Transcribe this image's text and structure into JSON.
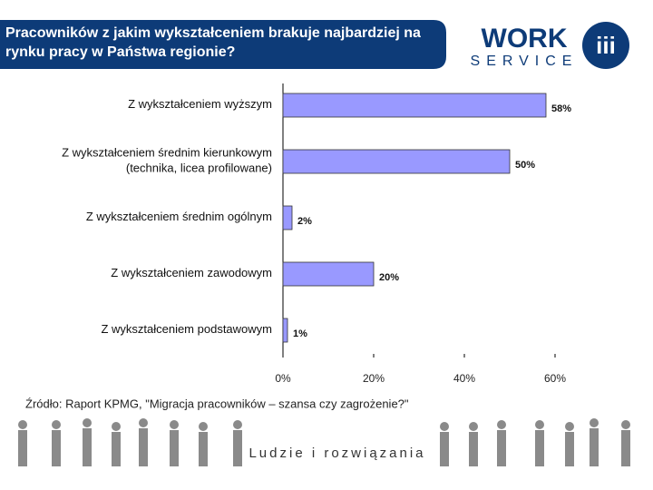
{
  "header": {
    "title": "Pracowników z jakim wykształceniem brakuje najbardziej na rynku pracy w Państwa regionie?",
    "logo_word": "WORK",
    "logo_sub": "SERVICE"
  },
  "chart_data": {
    "type": "bar",
    "orientation": "horizontal",
    "categories": [
      "Z wykształceniem wyższym",
      "Z wykształceniem średnim kierunkowym\n(technika, licea profilowane)",
      "Z wykształceniem średnim ogólnym",
      "Z wykształceniem zawodowym",
      "Z wykształceniem podstawowym"
    ],
    "values": [
      58,
      50,
      2,
      20,
      1
    ],
    "value_labels": [
      "58%",
      "50%",
      "2%",
      "20%",
      "1%"
    ],
    "color": "#9999ff",
    "xlim": [
      0,
      60
    ],
    "xticks": [
      {
        "value": 0,
        "label": "0%"
      },
      {
        "value": 20,
        "label": "20%"
      },
      {
        "value": 40,
        "label": "40%"
      },
      {
        "value": 60,
        "label": "60%"
      }
    ],
    "grid": false
  },
  "footer": {
    "source": "Źródło: Raport KPMG, \"Migracja pracowników – szansa czy zagrożenie?\"",
    "tagline": "Ludzie i rozwiązania"
  }
}
